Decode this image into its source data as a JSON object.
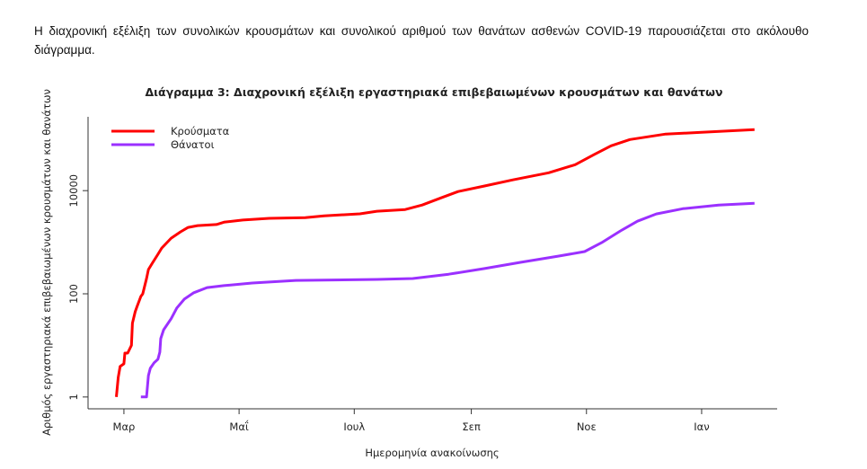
{
  "intro_text": "Η διαχρονική εξέλιξη των συνολικών κρουσμάτων και συνολικού αριθμού των θανάτων ασθενών COVID-19 παρουσιάζεται στο ακόλουθο διάγραμμα.",
  "chart_data": {
    "type": "line",
    "title": "Διάγραμμα 3: Διαχρονική εξέλιξη εργαστηριακά επιβεβαιωμένων κρουσμάτων και θανάτων",
    "xlabel": "Ημερομηνία ανακοίνωσης",
    "ylabel": "Αριθμός εργαστηριακά επιβεβαιωμένων κρουσμάτων και θανάτων",
    "x_unit": "days since 1 March",
    "xlim": [
      -19,
      346
    ],
    "y_scale": "log",
    "ylim": [
      0.59,
      270000
    ],
    "x_ticks": [
      {
        "label": "Μαρ",
        "value": 0
      },
      {
        "label": "Μαΐ",
        "value": 61
      },
      {
        "label": "Ιουλ",
        "value": 122
      },
      {
        "label": "Σεπ",
        "value": 184
      },
      {
        "label": "Νοε",
        "value": 245
      },
      {
        "label": "Ιαν",
        "value": 306
      }
    ],
    "y_ticks": [
      {
        "label": "1",
        "value": 1
      },
      {
        "label": "100",
        "value": 100
      },
      {
        "label": "10000",
        "value": 10000
      }
    ],
    "legend_position": "top-left",
    "series": [
      {
        "name": "Κρούσματα",
        "color": "#ff0000",
        "points": [
          [
            -4,
            1
          ],
          [
            -3,
            2.4
          ],
          [
            -2,
            3.9
          ],
          [
            0,
            4.4
          ],
          [
            0.5,
            7.1
          ],
          [
            2,
            7.1
          ],
          [
            4,
            10
          ],
          [
            4.5,
            27
          ],
          [
            6,
            45
          ],
          [
            7,
            57
          ],
          [
            9,
            89
          ],
          [
            10,
            100
          ],
          [
            12,
            198
          ],
          [
            13,
            296
          ],
          [
            15,
            390
          ],
          [
            18,
            585
          ],
          [
            20,
            770
          ],
          [
            25,
            1200
          ],
          [
            30,
            1590
          ],
          [
            34,
            1940
          ],
          [
            39,
            2100
          ],
          [
            49,
            2200
          ],
          [
            53,
            2450
          ],
          [
            63,
            2690
          ],
          [
            77,
            2900
          ],
          [
            96,
            3000
          ],
          [
            106,
            3250
          ],
          [
            125,
            3550
          ],
          [
            134,
            3990
          ],
          [
            149,
            4300
          ],
          [
            158,
            5250
          ],
          [
            168,
            7250
          ],
          [
            177,
            9600
          ],
          [
            191,
            12300
          ],
          [
            206,
            16200
          ],
          [
            225,
            22200
          ],
          [
            239,
            31800
          ],
          [
            249,
            50000
          ],
          [
            258,
            74000
          ],
          [
            268,
            98000
          ],
          [
            287,
            125000
          ],
          [
            306,
            135000
          ],
          [
            334,
            152000
          ]
        ]
      },
      {
        "name": "Θάνατοι",
        "color": "#9b30ff",
        "points": [
          [
            9,
            1
          ],
          [
            12,
            1
          ],
          [
            13,
            2.6
          ],
          [
            14,
            3.6
          ],
          [
            16,
            4.6
          ],
          [
            18,
            5.4
          ],
          [
            19,
            7.4
          ],
          [
            19.5,
            13.5
          ],
          [
            21,
            20
          ],
          [
            25,
            33
          ],
          [
            28,
            53
          ],
          [
            32,
            79
          ],
          [
            37,
            105
          ],
          [
            44,
            132
          ],
          [
            53,
            144
          ],
          [
            68,
            162
          ],
          [
            91,
            182
          ],
          [
            134,
            190
          ],
          [
            153,
            198
          ],
          [
            172,
            240
          ],
          [
            191,
            309
          ],
          [
            210,
            407
          ],
          [
            230,
            537
          ],
          [
            244,
            660
          ],
          [
            253,
            980
          ],
          [
            263,
            1660
          ],
          [
            272,
            2560
          ],
          [
            282,
            3530
          ],
          [
            296,
            4470
          ],
          [
            315,
            5260
          ],
          [
            334,
            5700
          ]
        ]
      }
    ]
  }
}
